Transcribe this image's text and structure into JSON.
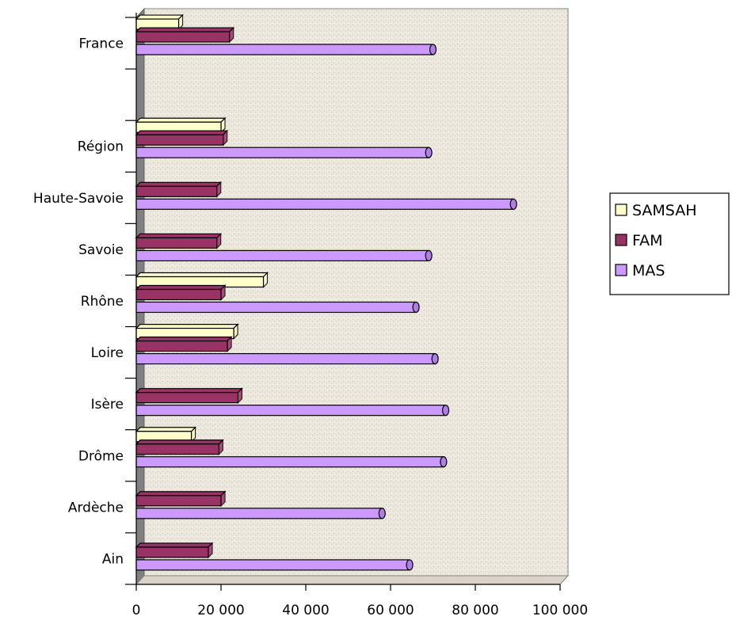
{
  "chart_data": {
    "type": "bar",
    "orientation": "horizontal",
    "categories": [
      "France",
      "Région",
      "Haute-Savoie",
      "Savoie",
      "Rhône",
      "Loire",
      "Isère",
      "Drôme",
      "Ardèche",
      "Ain"
    ],
    "series": [
      {
        "name": "SAMSAH",
        "color": "#ffffcc",
        "values": [
          10000,
          20000,
          null,
          null,
          30000,
          23000,
          null,
          13000,
          null,
          null
        ]
      },
      {
        "name": "FAM",
        "color": "#993366",
        "values": [
          22000,
          20500,
          19000,
          19000,
          20000,
          21500,
          24000,
          19500,
          20000,
          17000
        ]
      },
      {
        "name": "MAS",
        "color": "#cc99ff",
        "values": [
          70000,
          69000,
          89000,
          69000,
          66000,
          70500,
          73000,
          72500,
          58000,
          64500
        ]
      }
    ],
    "xlim": [
      0,
      100000
    ],
    "xticks": [
      "0",
      "20 000",
      "40 000",
      "60 000",
      "80 000",
      "100 000"
    ],
    "legend_position": "right",
    "background": "#ebe7dc",
    "three_d": true
  }
}
